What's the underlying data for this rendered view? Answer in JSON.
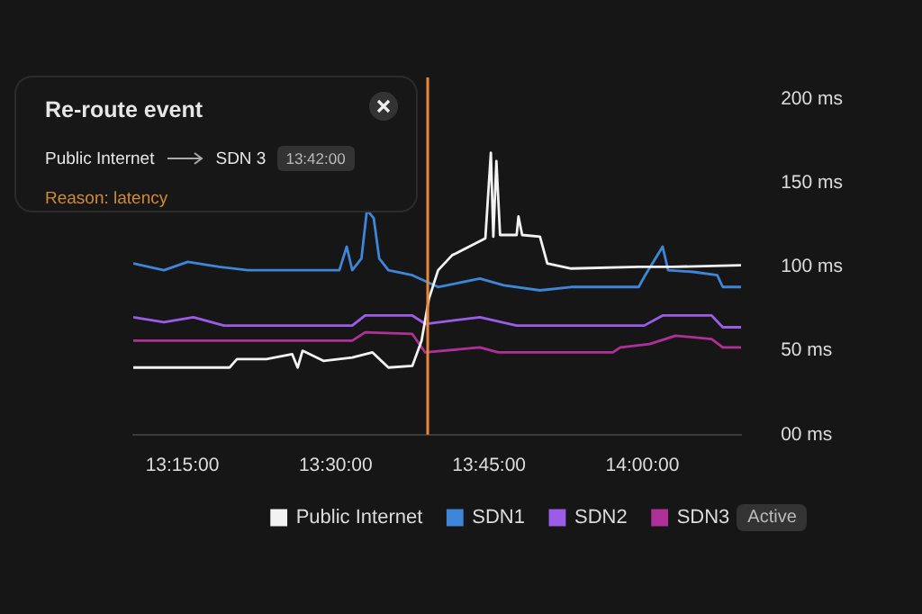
{
  "chart_data": {
    "type": "line",
    "x": [
      13.17,
      13.22,
      13.259,
      13.31,
      13.357,
      13.506,
      13.518,
      13.527,
      13.542,
      13.551,
      13.562,
      13.571,
      13.586,
      13.625,
      13.667,
      13.735,
      13.774,
      13.833,
      13.884,
      13.994,
      14.003,
      14.033,
      14.042,
      14.083,
      14.122,
      14.131,
      14.161
    ],
    "series": [
      {
        "name": "Public Internet",
        "color": "#f2f2f2",
        "x": [
          13.17,
          13.327,
          13.339,
          13.387,
          13.429,
          13.438,
          13.446,
          13.48,
          13.527,
          13.56,
          13.586,
          13.625,
          13.64,
          13.652,
          13.667,
          13.69,
          13.696,
          13.744,
          13.753,
          13.757,
          13.762,
          13.768,
          13.795,
          13.798,
          13.804,
          13.833,
          13.845,
          13.884,
          13.994,
          14.05,
          14.161
        ],
        "values": [
          40,
          40,
          45,
          45,
          48,
          40,
          50,
          44,
          46,
          49,
          40,
          41,
          56,
          81,
          98,
          107,
          108,
          117,
          168,
          118,
          163,
          119,
          119,
          130,
          119,
          118,
          102,
          99,
          100,
          100,
          101
        ]
      },
      {
        "name": "SDN1",
        "color": "#3d86d8",
        "values": [
          102,
          98,
          103,
          100,
          98,
          98,
          112,
          98,
          105,
          134,
          129,
          105,
          98,
          95,
          88,
          93,
          89,
          86,
          88,
          88,
          94,
          112,
          98,
          97,
          95,
          88,
          88
        ]
      },
      {
        "name": "SDN2",
        "color": "#9b5de5",
        "x": [
          13.17,
          13.22,
          13.268,
          13.318,
          13.527,
          13.548,
          13.625,
          13.646,
          13.735,
          13.795,
          14.003,
          14.033,
          14.113,
          14.131,
          14.161
        ],
        "values": [
          70,
          67,
          70,
          65,
          65,
          71,
          71,
          66,
          70,
          65,
          65,
          71,
          71,
          64,
          64
        ]
      },
      {
        "name": "SDN3",
        "color": "#b0309a",
        "x": [
          13.17,
          13.527,
          13.548,
          13.625,
          13.646,
          13.735,
          13.765,
          13.952,
          13.964,
          14.012,
          14.054,
          14.113,
          14.131,
          14.161
        ],
        "values": [
          56,
          56,
          61,
          60,
          49,
          52,
          49,
          49,
          52,
          54,
          59,
          57,
          52,
          52
        ]
      }
    ],
    "xlim": [
      13.17,
      14.161
    ],
    "xticks": [
      {
        "value": 13.25,
        "label": "13:15:00"
      },
      {
        "value": 13.5,
        "label": "13:30:00"
      },
      {
        "value": 13.75,
        "label": "13:45:00"
      },
      {
        "value": 14,
        "label": "14:00:00"
      }
    ],
    "ylim": [
      0,
      200
    ],
    "yticks": [
      {
        "value": 0,
        "label": "00 ms"
      },
      {
        "value": 50,
        "label": "50 ms"
      },
      {
        "value": 100,
        "label": "100 ms"
      },
      {
        "value": 150,
        "label": "150 ms"
      },
      {
        "value": 200,
        "label": "200 ms"
      }
    ],
    "ref_lines": [
      {
        "axis": "x",
        "value": 13.65,
        "color": "#e8893a"
      }
    ],
    "annotations": [
      "Re-route event",
      "Public Internet",
      "SDN 3",
      "13:42:00",
      "Reason: latency",
      "Active"
    ],
    "legend": "bottom",
    "grid": false,
    "marker": "none",
    "line_style": "solid"
  }
}
